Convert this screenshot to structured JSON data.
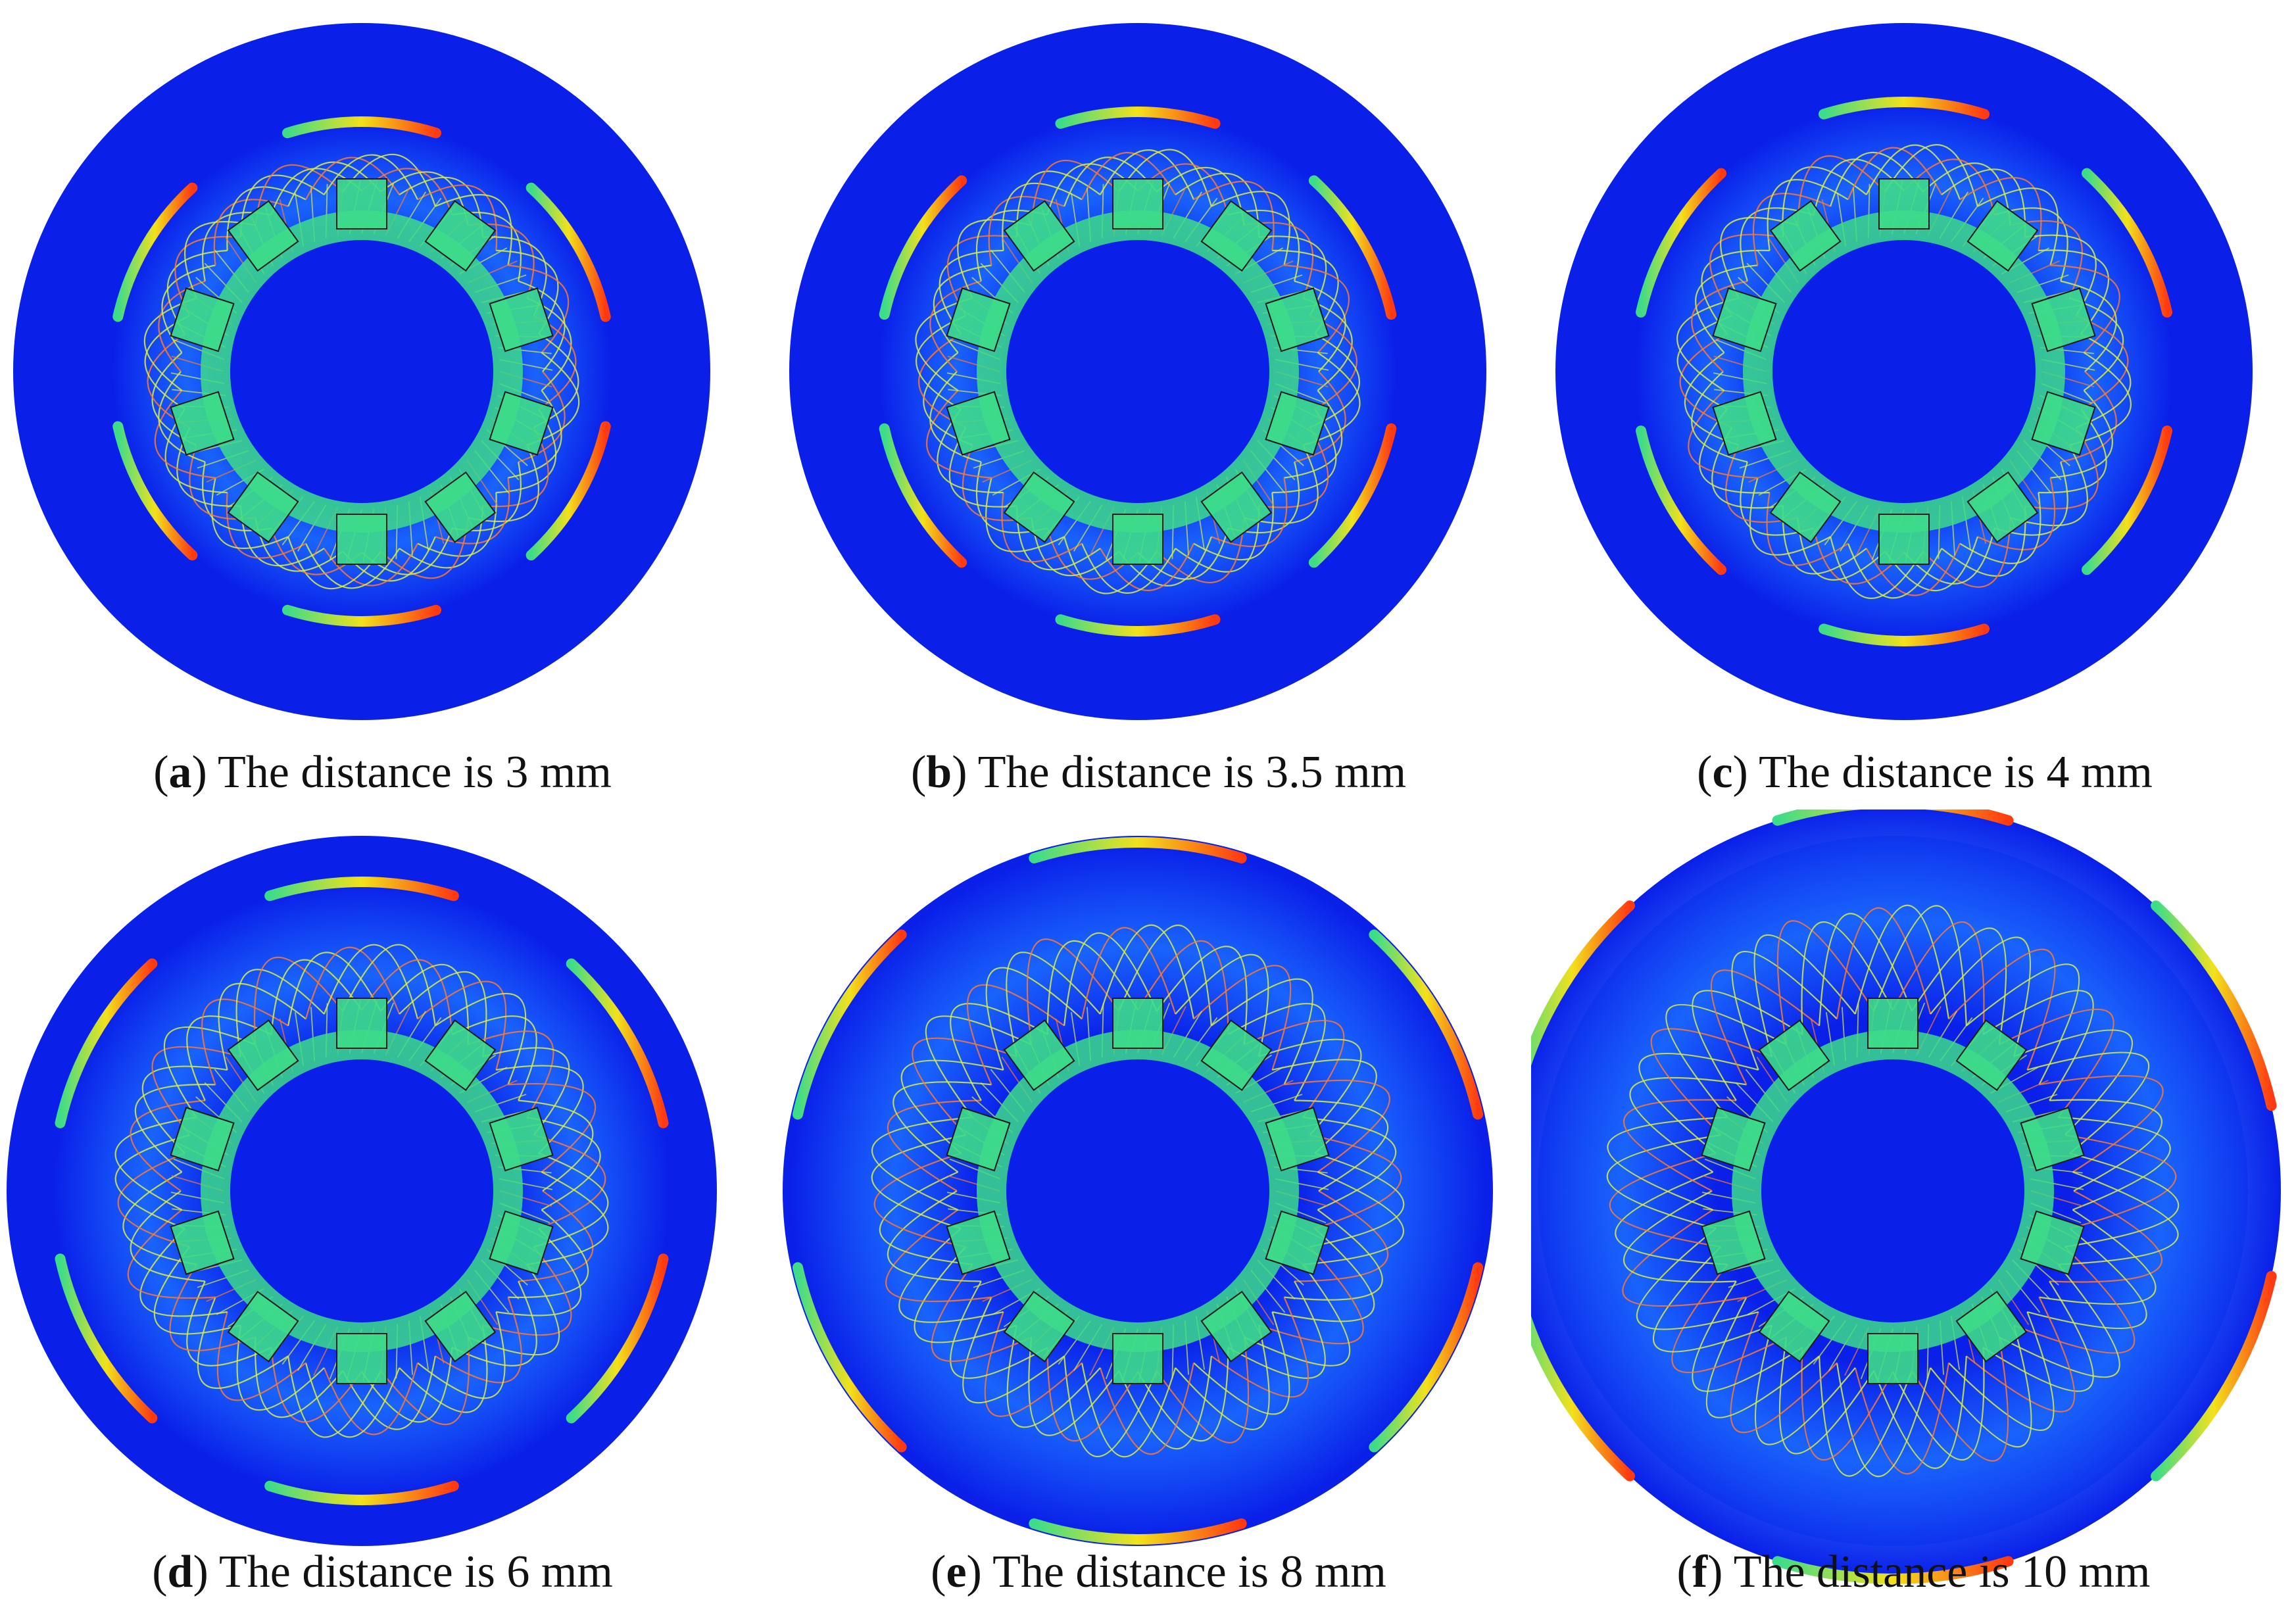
{
  "figure": {
    "panels": [
      {
        "letter": "a",
        "text": "The distance is 3 mm",
        "distance_mm": 3
      },
      {
        "letter": "b",
        "text": "The distance is 3.5 mm",
        "distance_mm": 3.5
      },
      {
        "letter": "c",
        "text": "The distance is 4 mm",
        "distance_mm": 4
      },
      {
        "letter": "d",
        "text": "The distance is 6 mm",
        "distance_mm": 6
      },
      {
        "letter": "e",
        "text": "The distance is 8 mm",
        "distance_mm": 8
      },
      {
        "letter": "f",
        "text": "The distance is 10 mm",
        "distance_mm": 10
      }
    ],
    "colors": {
      "background_field": "#0a1fe8",
      "low_field": "#1b6bff",
      "mid_field": "#3ddc8a",
      "high_field": "#f2e11c",
      "peak_field": "#ff3a12",
      "flux_line_warm": "#ff7a2a",
      "flux_line_cool": "#d8f040",
      "outline": "#1a1a1a"
    }
  }
}
